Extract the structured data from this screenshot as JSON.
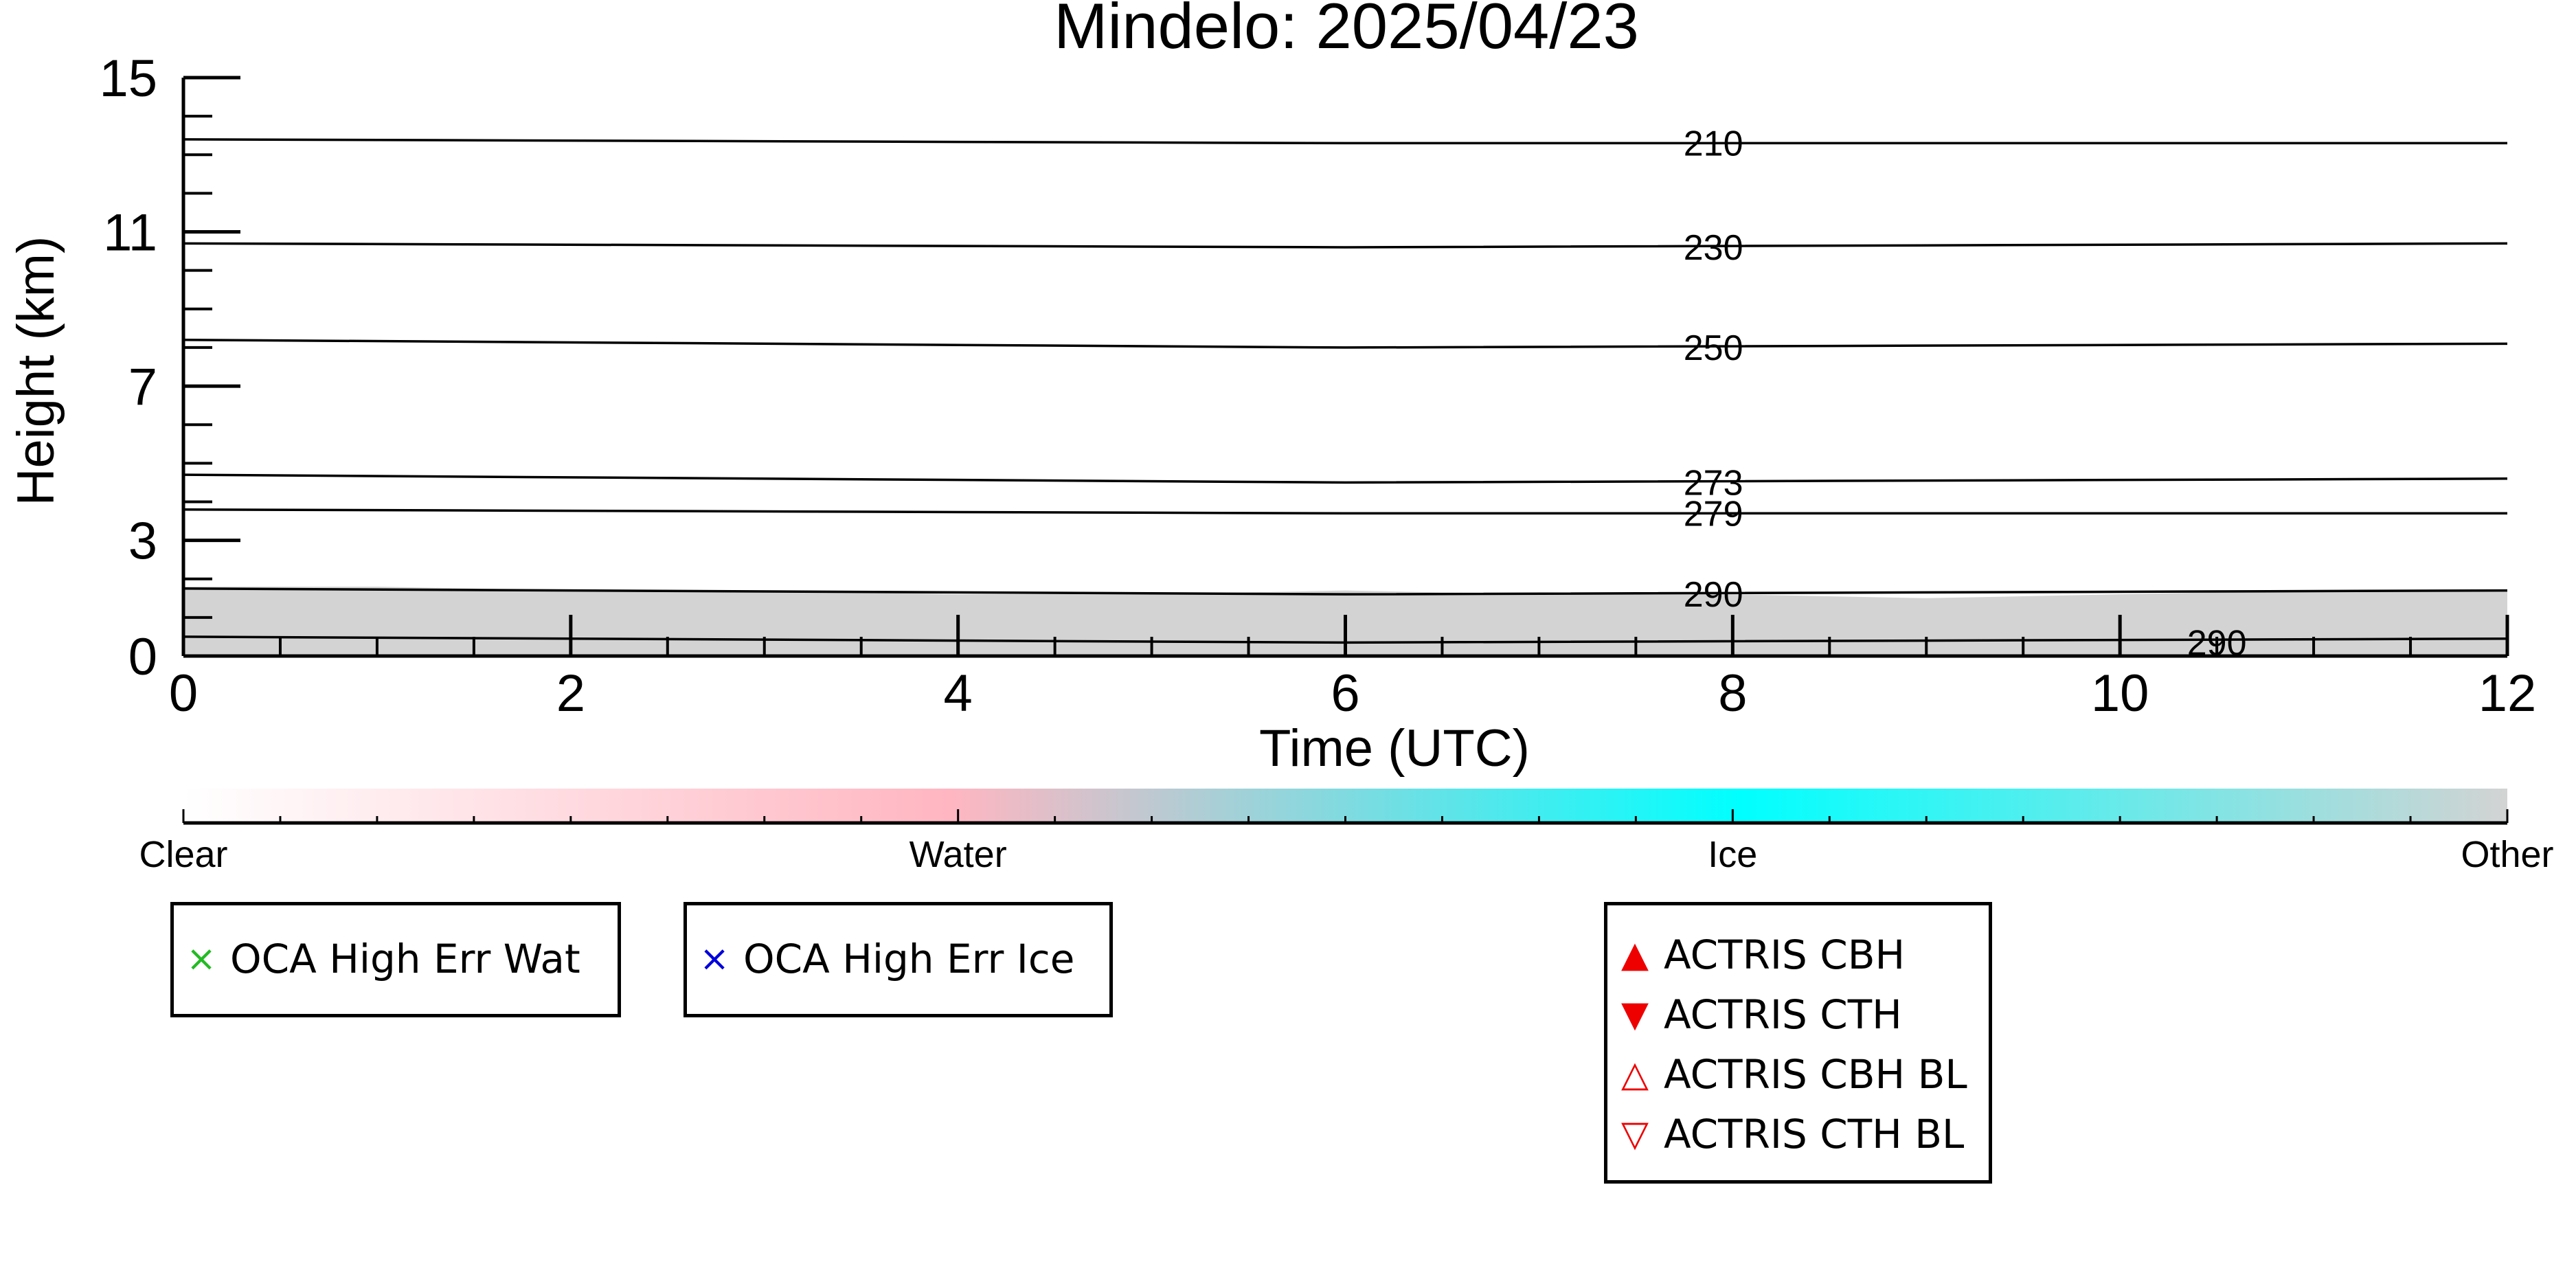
{
  "chart_data": {
    "type": "heatmap",
    "title": "Mindelo: 2025/04/23",
    "xlabel": "Time (UTC)",
    "ylabel": "Height (km)",
    "xlim": [
      0,
      12
    ],
    "ylim": [
      0,
      15
    ],
    "x_ticks": [
      0,
      2,
      4,
      6,
      8,
      10,
      12
    ],
    "y_ticks": [
      0,
      3,
      7,
      11,
      15
    ],
    "grid": false,
    "classification": {
      "colorbar_labels": [
        "Clear",
        "Water",
        "Ice",
        "Other"
      ],
      "colors": {
        "Clear": "#ffffff",
        "Water": "#ffb6c1",
        "Ice": "#00ffff",
        "Other": "#d3d3d3"
      },
      "layer": {
        "class": "Other",
        "height_top_km": [
          1.8,
          1.8,
          1.7,
          1.7,
          1.6,
          1.6,
          1.7,
          1.6,
          1.6,
          1.5,
          1.6,
          1.7,
          1.7
        ],
        "time_h": [
          0,
          1,
          2,
          3,
          4,
          5,
          6,
          7,
          8,
          9,
          10,
          11,
          12
        ]
      }
    },
    "temperature_contours": [
      {
        "label": "210",
        "x": [
          0,
          6,
          12
        ],
        "y": [
          13.4,
          13.3,
          13.3
        ],
        "label_x": 7.9
      },
      {
        "label": "230",
        "x": [
          0,
          6,
          12
        ],
        "y": [
          10.7,
          10.6,
          10.7
        ],
        "label_x": 7.9
      },
      {
        "label": "250",
        "x": [
          0,
          6,
          12
        ],
        "y": [
          8.2,
          8.0,
          8.1
        ],
        "label_x": 7.9
      },
      {
        "label": "273",
        "x": [
          0,
          6,
          12
        ],
        "y": [
          4.7,
          4.5,
          4.6
        ],
        "label_x": 7.9
      },
      {
        "label": "279",
        "x": [
          0,
          6,
          12
        ],
        "y": [
          3.8,
          3.7,
          3.7
        ],
        "label_x": 7.9
      },
      {
        "label": "290",
        "x": [
          0,
          6,
          12
        ],
        "y": [
          1.75,
          1.6,
          1.7
        ],
        "label_x": 7.9
      },
      {
        "label": "290",
        "x": [
          0,
          6,
          12
        ],
        "y": [
          0.5,
          0.35,
          0.45
        ],
        "label_x": 10.5
      }
    ],
    "legends": [
      {
        "entries": [
          {
            "marker": "×",
            "color": "#22bb22",
            "label": "OCA High Err Wat"
          }
        ]
      },
      {
        "entries": [
          {
            "marker": "×",
            "color": "#0000dd",
            "label": "OCA High Err Ice"
          }
        ]
      },
      {
        "entries": [
          {
            "marker": "▲",
            "color": "#ee0000",
            "label": "ACTRIS CBH"
          },
          {
            "marker": "▼",
            "color": "#ee0000",
            "label": "ACTRIS CTH"
          },
          {
            "marker": "△",
            "color": "#ee0000",
            "label": "ACTRIS CBH BL"
          },
          {
            "marker": "▽",
            "color": "#ee0000",
            "label": "ACTRIS CTH BL"
          }
        ]
      }
    ]
  }
}
